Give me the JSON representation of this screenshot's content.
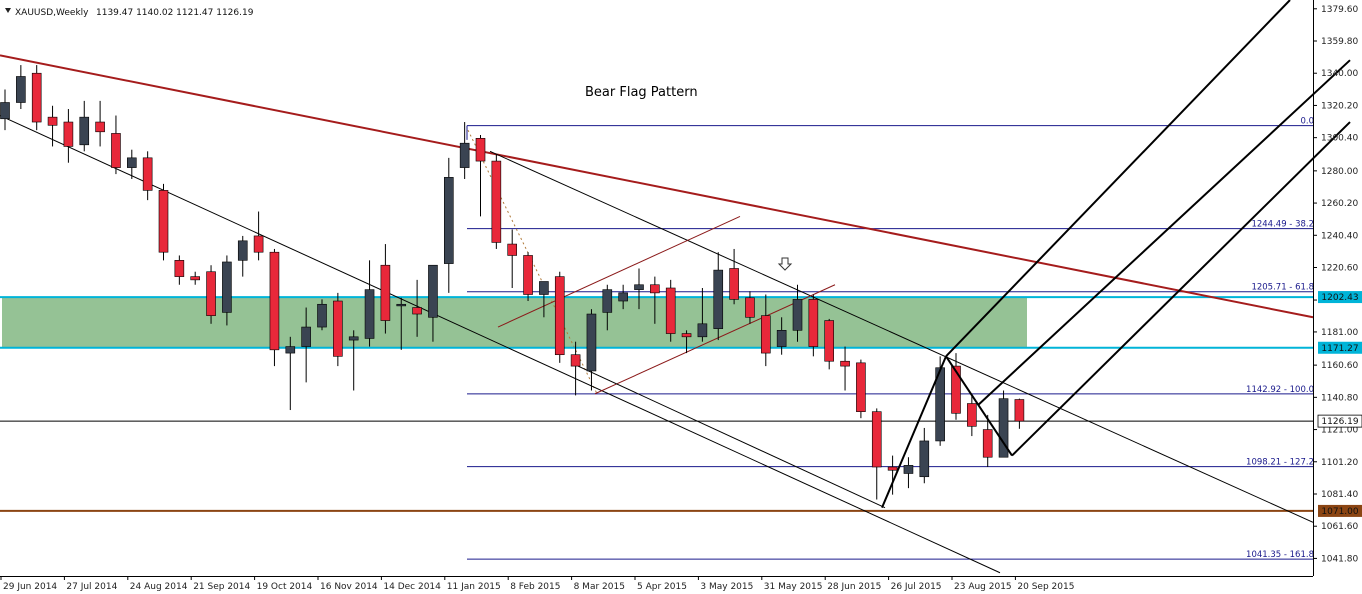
{
  "header": {
    "symbol": "XAUUSD,Weekly",
    "ohlc": "1139.47 1140.02 1121.47 1126.19"
  },
  "annotation": {
    "title": "Bear Flag Pattern",
    "arrow": "down-arrow-icon"
  },
  "colors": {
    "bull": "#3a4452",
    "bear": "#e8283a",
    "trend_red": "#a51c1c",
    "flag_red": "#8b1a1a",
    "zone_fill": "#8fbf8f",
    "zone_line": "#00b4d8",
    "fib": "#1a1a8c",
    "support": "#8b4513"
  },
  "chart_data": {
    "type": "candlestick",
    "title": "",
    "xlabel": "",
    "ylabel": "",
    "timeframe": "Weekly",
    "ylim": [
      1031,
      1385
    ],
    "y_ticks": [
      1041.8,
      1061.6,
      1081.4,
      1101.2,
      1121.0,
      1140.8,
      1160.6,
      1181.0,
      1200.6,
      1220.6,
      1240.4,
      1260.2,
      1280.0,
      1300.4,
      1320.2,
      1340.0,
      1359.8,
      1379.6
    ],
    "x_tick_labels": [
      "29 Jun 2014",
      "27 Jul 2014",
      "24 Aug 2014",
      "21 Sep 2014",
      "19 Oct 2014",
      "16 Nov 2014",
      "14 Dec 2014",
      "11 Jan 2015",
      "8 Feb 2015",
      "8 Mar 2015",
      "5 Apr 2015",
      "3 May 2015",
      "31 May 2015",
      "28 Jun 2015",
      "26 Jul 2015",
      "23 Aug 2015",
      "20 Sep 2015"
    ],
    "candles": [
      [
        1312,
        1330,
        1322,
        1305
      ],
      [
        1322,
        1345,
        1338,
        1318
      ],
      [
        1340,
        1345,
        1310,
        1305
      ],
      [
        1313,
        1320,
        1308,
        1295
      ],
      [
        1310,
        1318,
        1295,
        1285
      ],
      [
        1296,
        1323,
        1313,
        1292
      ],
      [
        1310,
        1323,
        1304,
        1295
      ],
      [
        1303,
        1314,
        1282,
        1278
      ],
      [
        1282,
        1293,
        1288,
        1275
      ],
      [
        1288,
        1292,
        1268,
        1262
      ],
      [
        1268,
        1272,
        1230,
        1225
      ],
      [
        1225,
        1228,
        1215,
        1210
      ],
      [
        1215,
        1218,
        1213,
        1210
      ],
      [
        1218,
        1222,
        1191,
        1186
      ],
      [
        1193,
        1228,
        1224,
        1185
      ],
      [
        1225,
        1240,
        1237,
        1215
      ],
      [
        1240,
        1255,
        1230,
        1225
      ],
      [
        1230,
        1232,
        1170,
        1160
      ],
      [
        1168,
        1178,
        1172,
        1133
      ],
      [
        1172,
        1196,
        1184,
        1150
      ],
      [
        1184,
        1201,
        1198,
        1182
      ],
      [
        1200,
        1205,
        1166,
        1160
      ],
      [
        1176,
        1182,
        1178,
        1145
      ],
      [
        1177,
        1225,
        1207,
        1172
      ],
      [
        1222,
        1235,
        1188,
        1180
      ],
      [
        1197,
        1202,
        1198,
        1170
      ],
      [
        1196,
        1213,
        1192,
        1178
      ],
      [
        1190,
        1216,
        1222,
        1175
      ],
      [
        1223,
        1288,
        1276,
        1205
      ],
      [
        1282,
        1310,
        1297,
        1275
      ],
      [
        1300,
        1302,
        1286,
        1252
      ],
      [
        1286,
        1290,
        1236,
        1232
      ],
      [
        1235,
        1244,
        1228,
        1208
      ],
      [
        1228,
        1230,
        1204,
        1200
      ],
      [
        1204,
        1210,
        1212,
        1190
      ],
      [
        1215,
        1218,
        1167,
        1162
      ],
      [
        1167,
        1175,
        1160,
        1142
      ],
      [
        1157,
        1195,
        1192,
        1145
      ],
      [
        1193,
        1210,
        1207,
        1182
      ],
      [
        1200,
        1210,
        1205,
        1195
      ],
      [
        1207,
        1220,
        1210,
        1195
      ],
      [
        1210,
        1215,
        1205,
        1186
      ],
      [
        1208,
        1213,
        1180,
        1175
      ],
      [
        1180,
        1182,
        1178,
        1168
      ],
      [
        1178,
        1208,
        1186,
        1175
      ],
      [
        1183,
        1230,
        1219,
        1176
      ],
      [
        1220,
        1232,
        1201,
        1198
      ],
      [
        1202,
        1206,
        1190,
        1186
      ],
      [
        1191,
        1204,
        1168,
        1160
      ],
      [
        1172,
        1190,
        1182,
        1167
      ],
      [
        1182,
        1210,
        1201,
        1175
      ],
      [
        1201,
        1204,
        1172,
        1166
      ],
      [
        1188,
        1189,
        1163,
        1158
      ],
      [
        1163,
        1172,
        1160,
        1145
      ],
      [
        1162,
        1164,
        1132,
        1128
      ],
      [
        1132,
        1134,
        1098,
        1078
      ],
      [
        1098,
        1105,
        1096,
        1081
      ],
      [
        1094,
        1104,
        1099,
        1085
      ],
      [
        1092,
        1122,
        1114,
        1088
      ],
      [
        1114,
        1166,
        1159,
        1111
      ],
      [
        1160,
        1168,
        1131,
        1127
      ],
      [
        1137,
        1142,
        1123,
        1117
      ],
      [
        1121,
        1130,
        1104,
        1098
      ],
      [
        1104,
        1145,
        1140,
        1104
      ],
      [
        1139.47,
        1140.02,
        1126.19,
        1121.47
      ]
    ],
    "horizontal_levels": [
      {
        "value": 1202.43,
        "label": "1202.43"
      },
      {
        "value": 1171.27,
        "label": "1171.27"
      },
      {
        "value": 1126.19,
        "label": "1126.19"
      },
      {
        "value": 1071.0,
        "label": "1071.00"
      }
    ],
    "fibonacci": [
      {
        "value": 1307.8,
        "label": "0.0"
      },
      {
        "value": 1244.49,
        "label": "1244.49 - 38.2"
      },
      {
        "value": 1205.71,
        "label": "1205.71 - 61.8"
      },
      {
        "value": 1142.92,
        "label": "1142.92 - 100.0"
      },
      {
        "value": 1098.21,
        "label": "1098.21 - 127.2"
      },
      {
        "value": 1041.35,
        "label": "1041.35 - 161.8"
      }
    ],
    "zone": {
      "from": 1171.27,
      "to": 1202.43
    }
  }
}
